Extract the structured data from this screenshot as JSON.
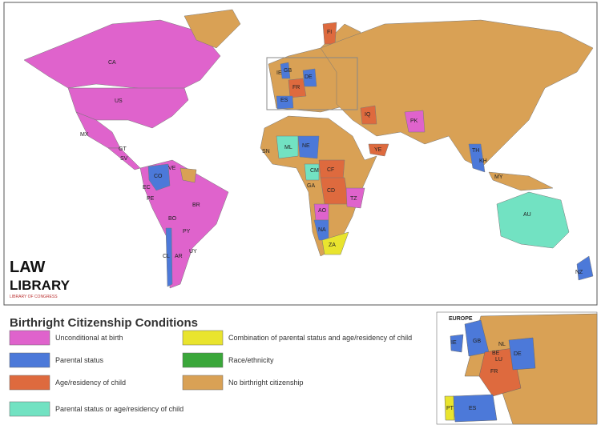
{
  "title": "Birthright Citizenship Conditions",
  "legend": [
    {
      "label": "Unconditional at birth",
      "color": "#df63cc"
    },
    {
      "label": "Parental status",
      "color": "#4c79d9"
    },
    {
      "label": "Age/residency of child",
      "color": "#de6a3e"
    },
    {
      "label": "Parental status or age/residency of child",
      "color": "#72e2c2"
    },
    {
      "label": "Combination of parental status and age/residency of child",
      "color": "#e9e42e"
    },
    {
      "label": "Race/ethnicity",
      "color": "#3aa73a"
    },
    {
      "label": "No birthright citizenship",
      "color": "#d9a155"
    }
  ],
  "map_labels": [
    "CA",
    "US",
    "MX",
    "GT",
    "SV",
    "CO",
    "VE",
    "EC",
    "PE",
    "BO",
    "BR",
    "PY",
    "CL",
    "AR",
    "UY",
    "IE",
    "GB",
    "DE",
    "FR",
    "ES",
    "FI",
    "IQ",
    "PK",
    "YE",
    "SN",
    "ML",
    "NE",
    "CM",
    "CF",
    "CD",
    "GA",
    "TZ",
    "AO",
    "NA",
    "ZA",
    "TH",
    "KH",
    "MY",
    "AU",
    "NZ"
  ],
  "logo": {
    "line1": "LAW",
    "line2": "LIBRARY",
    "line3": "LIBRARY OF CONGRESS"
  },
  "inset": {
    "title": "EUROPE",
    "labels": [
      "IE",
      "GB",
      "NL",
      "BE",
      "LU",
      "DE",
      "FR",
      "ES",
      "PT"
    ]
  }
}
